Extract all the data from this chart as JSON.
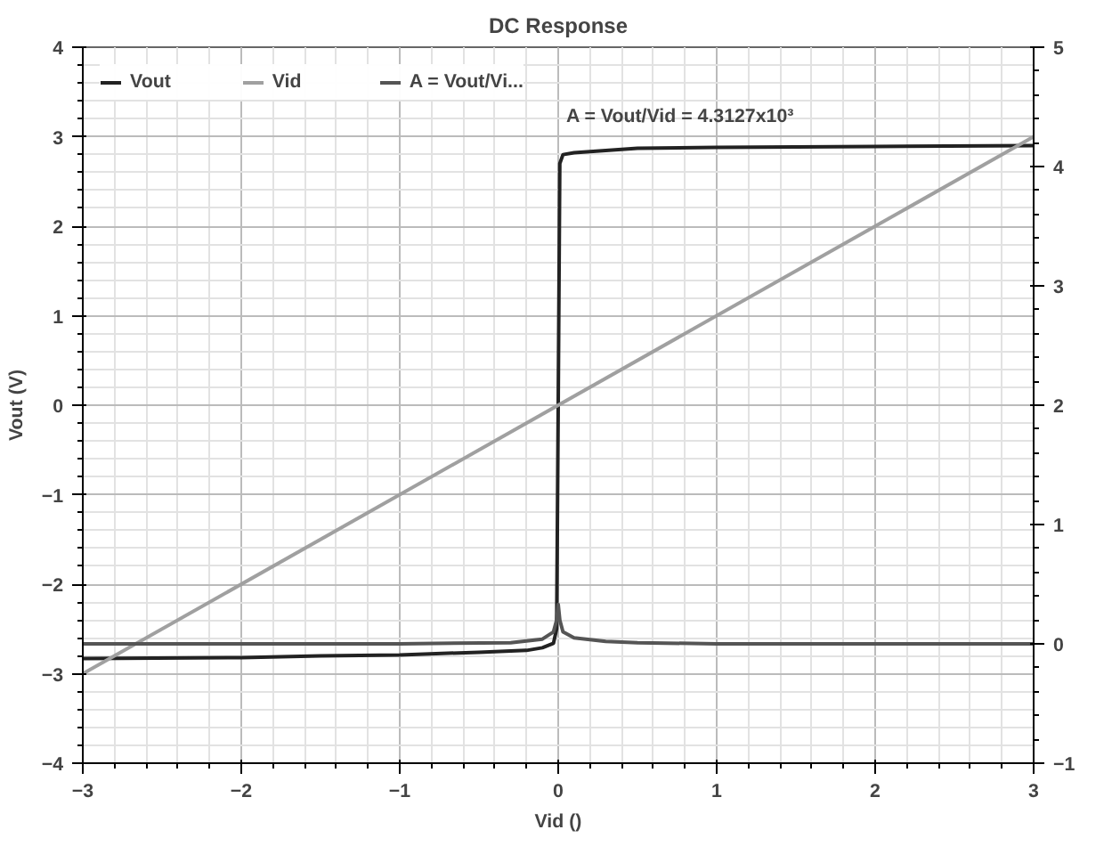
{
  "chart_data": {
    "type": "line",
    "title": "DC Response",
    "xlabel": "Vid ()",
    "ylabel": "Vout (V)",
    "xlim": [
      -3,
      3
    ],
    "xticks": [
      -3,
      -2,
      -1,
      0,
      1,
      2,
      3
    ],
    "ylim": [
      -4,
      4
    ],
    "yticks": [
      -4,
      -3,
      -2,
      -1,
      0,
      1,
      2,
      3,
      4
    ],
    "y2lim": [
      -1,
      5
    ],
    "y2ticks": [
      -1,
      0,
      1,
      2,
      3,
      4,
      5
    ],
    "grid": true,
    "legend": "top left",
    "marker": "none",
    "line_style": "solid",
    "series": [
      {
        "name": "Vout",
        "color": "#222222",
        "x": [
          -3,
          -2,
          -1.5,
          -1,
          -0.5,
          -0.2,
          -0.1,
          -0.03,
          -0.01,
          0,
          0.01,
          0.03,
          0.1,
          0.5,
          1,
          2,
          3
        ],
        "values": [
          -2.83,
          -2.82,
          -2.8,
          -2.79,
          -2.76,
          -2.74,
          -2.71,
          -2.66,
          -2.5,
          0,
          2.7,
          2.8,
          2.82,
          2.87,
          2.88,
          2.89,
          2.9
        ]
      },
      {
        "name": "Vid",
        "color": "#a0a0a0",
        "x": [
          -3,
          3
        ],
        "values": [
          -3,
          3
        ]
      },
      {
        "name": "A = Vout/Vi...",
        "color": "#555555",
        "axis": "y2",
        "x": [
          -3,
          -1,
          -0.3,
          -0.1,
          -0.03,
          -0.01,
          0,
          0.01,
          0.03,
          0.1,
          0.3,
          0.5,
          1,
          3
        ],
        "values": [
          0,
          0,
          0.01,
          0.04,
          0.1,
          0.2,
          0.33,
          0.2,
          0.1,
          0.05,
          0.02,
          0.01,
          0,
          0
        ]
      }
    ],
    "annotations": [
      "A = Vout/Vid = 4.3127x10³"
    ]
  }
}
